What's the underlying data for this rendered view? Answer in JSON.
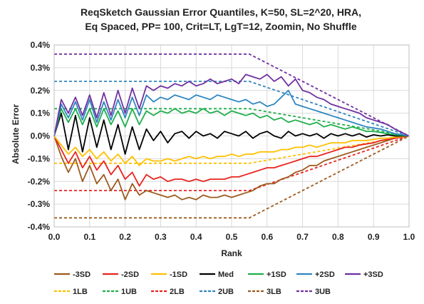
{
  "chart_data": {
    "type": "line",
    "title": [
      "ReqSketch Gaussian Error Quantiles, K=50, SL=2^20,  HRA,",
      "Eq Spaced, PP= 100, Crit=LT, LgT=12, Zoomin, No Shuffle"
    ],
    "xlabel": "Rank",
    "ylabel": "Absolute Error",
    "xlim": [
      0,
      1.0
    ],
    "ylim": [
      -0.4,
      0.4
    ],
    "x_ticks": [
      "0.0",
      "0.1",
      "0.2",
      "0.3",
      "0.4",
      "0.5",
      "0.6",
      "0.7",
      "0.8",
      "0.9",
      "1.0"
    ],
    "y_ticks": [
      "0.4%",
      "0.3%",
      "0.2%",
      "0.1%",
      "0.0%",
      "-0.1%",
      "-0.2%",
      "-0.3%",
      "-0.4%"
    ],
    "y_unit": "%",
    "grid": true,
    "legend_position": "bottom",
    "series": [
      {
        "name": "-3SD",
        "color": "#9C5B1E",
        "dash": false,
        "x": [
          0,
          0.02,
          0.04,
          0.06,
          0.08,
          0.1,
          0.12,
          0.14,
          0.16,
          0.18,
          0.2,
          0.22,
          0.24,
          0.26,
          0.28,
          0.3,
          0.32,
          0.34,
          0.36,
          0.38,
          0.4,
          0.42,
          0.44,
          0.46,
          0.48,
          0.5,
          0.52,
          0.54,
          0.56,
          0.58,
          0.6,
          0.62,
          0.64,
          0.66,
          0.68,
          0.7,
          0.72,
          0.74,
          0.76,
          0.78,
          0.8,
          0.82,
          0.84,
          0.86,
          0.88,
          0.9,
          0.92,
          0.94,
          0.96,
          0.98,
          1.0
        ],
        "y": [
          0,
          -0.09,
          -0.16,
          -0.1,
          -0.2,
          -0.13,
          -0.21,
          -0.17,
          -0.24,
          -0.19,
          -0.28,
          -0.21,
          -0.26,
          -0.24,
          -0.25,
          -0.26,
          -0.27,
          -0.26,
          -0.28,
          -0.27,
          -0.28,
          -0.26,
          -0.27,
          -0.27,
          -0.26,
          -0.27,
          -0.26,
          -0.25,
          -0.24,
          -0.22,
          -0.21,
          -0.21,
          -0.19,
          -0.18,
          -0.16,
          -0.15,
          -0.13,
          -0.13,
          -0.11,
          -0.1,
          -0.09,
          -0.08,
          -0.07,
          -0.06,
          -0.05,
          -0.04,
          -0.03,
          -0.02,
          -0.01,
          -0.005,
          0
        ]
      },
      {
        "name": "-2SD",
        "color": "#E8231F",
        "dash": false,
        "x": [
          0,
          0.02,
          0.04,
          0.06,
          0.08,
          0.1,
          0.12,
          0.14,
          0.16,
          0.18,
          0.2,
          0.22,
          0.24,
          0.26,
          0.28,
          0.3,
          0.32,
          0.34,
          0.36,
          0.38,
          0.4,
          0.42,
          0.44,
          0.46,
          0.48,
          0.5,
          0.52,
          0.54,
          0.56,
          0.58,
          0.6,
          0.62,
          0.64,
          0.66,
          0.68,
          0.7,
          0.72,
          0.74,
          0.76,
          0.78,
          0.8,
          0.82,
          0.84,
          0.86,
          0.88,
          0.9,
          0.92,
          0.94,
          0.96,
          0.98,
          1.0
        ],
        "y": [
          0,
          -0.06,
          -0.12,
          -0.07,
          -0.14,
          -0.09,
          -0.15,
          -0.11,
          -0.17,
          -0.13,
          -0.19,
          -0.16,
          -0.22,
          -0.17,
          -0.19,
          -0.18,
          -0.2,
          -0.19,
          -0.19,
          -0.2,
          -0.19,
          -0.2,
          -0.19,
          -0.19,
          -0.19,
          -0.18,
          -0.18,
          -0.17,
          -0.16,
          -0.15,
          -0.14,
          -0.14,
          -0.13,
          -0.12,
          -0.11,
          -0.1,
          -0.09,
          -0.09,
          -0.08,
          -0.07,
          -0.06,
          -0.05,
          -0.05,
          -0.04,
          -0.035,
          -0.03,
          -0.02,
          -0.015,
          -0.01,
          -0.005,
          0
        ]
      },
      {
        "name": "-1SD",
        "color": "#FFC000",
        "dash": false,
        "x": [
          0,
          0.02,
          0.04,
          0.06,
          0.08,
          0.1,
          0.12,
          0.14,
          0.16,
          0.18,
          0.2,
          0.22,
          0.24,
          0.26,
          0.28,
          0.3,
          0.32,
          0.34,
          0.36,
          0.38,
          0.4,
          0.42,
          0.44,
          0.46,
          0.48,
          0.5,
          0.52,
          0.54,
          0.56,
          0.58,
          0.6,
          0.62,
          0.64,
          0.66,
          0.68,
          0.7,
          0.72,
          0.74,
          0.76,
          0.78,
          0.8,
          0.82,
          0.84,
          0.86,
          0.88,
          0.9,
          0.92,
          0.94,
          0.96,
          0.98,
          1.0
        ],
        "y": [
          0,
          -0.04,
          -0.08,
          -0.05,
          -0.09,
          -0.06,
          -0.1,
          -0.07,
          -0.11,
          -0.08,
          -0.12,
          -0.09,
          -0.13,
          -0.1,
          -0.11,
          -0.11,
          -0.1,
          -0.11,
          -0.1,
          -0.09,
          -0.1,
          -0.09,
          -0.1,
          -0.09,
          -0.09,
          -0.08,
          -0.09,
          -0.08,
          -0.08,
          -0.07,
          -0.07,
          -0.07,
          -0.06,
          -0.06,
          -0.05,
          -0.05,
          -0.04,
          -0.05,
          -0.04,
          -0.03,
          -0.03,
          -0.03,
          -0.02,
          -0.02,
          -0.02,
          -0.015,
          -0.01,
          -0.01,
          -0.005,
          -0.003,
          0
        ]
      },
      {
        "name": "Med",
        "color": "#000000",
        "dash": false,
        "x": [
          0,
          0.02,
          0.04,
          0.06,
          0.08,
          0.1,
          0.12,
          0.14,
          0.16,
          0.18,
          0.2,
          0.22,
          0.24,
          0.26,
          0.28,
          0.3,
          0.32,
          0.34,
          0.36,
          0.38,
          0.4,
          0.42,
          0.44,
          0.46,
          0.48,
          0.5,
          0.52,
          0.54,
          0.56,
          0.58,
          0.6,
          0.62,
          0.64,
          0.66,
          0.68,
          0.7,
          0.72,
          0.74,
          0.76,
          0.78,
          0.8,
          0.82,
          0.84,
          0.86,
          0.88,
          0.9,
          0.92,
          0.94,
          0.96,
          0.98,
          1.0
        ],
        "y": [
          0,
          0.1,
          -0.06,
          0.09,
          -0.07,
          0.08,
          -0.05,
          0.07,
          -0.06,
          0.05,
          -0.08,
          0.04,
          -0.06,
          0.03,
          -0.02,
          0.02,
          -0.03,
          0.01,
          0.02,
          -0.01,
          0.02,
          0.0,
          0.01,
          -0.01,
          0.02,
          0.01,
          0.0,
          0.02,
          -0.01,
          0.01,
          0.02,
          0.0,
          -0.01,
          0.02,
          0.0,
          0.01,
          0.0,
          0.01,
          -0.01,
          0.01,
          0.0,
          0.01,
          0.0,
          0.01,
          -0.005,
          0.005,
          0.0,
          0.005,
          0.0,
          0.0,
          0
        ]
      },
      {
        "name": "+1SD",
        "color": "#1FAF4B",
        "dash": false,
        "x": [
          0,
          0.02,
          0.04,
          0.06,
          0.08,
          0.1,
          0.12,
          0.14,
          0.16,
          0.18,
          0.2,
          0.22,
          0.24,
          0.26,
          0.28,
          0.3,
          0.32,
          0.34,
          0.36,
          0.38,
          0.4,
          0.42,
          0.44,
          0.46,
          0.48,
          0.5,
          0.52,
          0.54,
          0.56,
          0.58,
          0.6,
          0.62,
          0.64,
          0.66,
          0.68,
          0.7,
          0.72,
          0.74,
          0.76,
          0.78,
          0.8,
          0.82,
          0.84,
          0.86,
          0.88,
          0.9,
          0.92,
          0.94,
          0.96,
          0.98,
          1.0
        ],
        "y": [
          0,
          0.12,
          0.06,
          0.12,
          0.05,
          0.12,
          0.04,
          0.12,
          0.05,
          0.11,
          0.04,
          0.12,
          0.05,
          0.11,
          0.09,
          0.11,
          0.1,
          0.12,
          0.1,
          0.11,
          0.1,
          0.12,
          0.1,
          0.11,
          0.09,
          0.11,
          0.1,
          0.09,
          0.1,
          0.08,
          0.09,
          0.07,
          0.08,
          0.06,
          0.07,
          0.06,
          0.05,
          0.06,
          0.04,
          0.05,
          0.04,
          0.03,
          0.04,
          0.03,
          0.02,
          0.02,
          0.015,
          0.01,
          0.005,
          0.003,
          0
        ]
      },
      {
        "name": "+2SD",
        "color": "#2E86C1",
        "dash": false,
        "x": [
          0,
          0.02,
          0.04,
          0.06,
          0.08,
          0.1,
          0.12,
          0.14,
          0.16,
          0.18,
          0.2,
          0.22,
          0.24,
          0.26,
          0.28,
          0.3,
          0.32,
          0.34,
          0.36,
          0.38,
          0.4,
          0.42,
          0.44,
          0.46,
          0.48,
          0.5,
          0.52,
          0.54,
          0.56,
          0.58,
          0.6,
          0.62,
          0.64,
          0.66,
          0.68,
          0.7,
          0.72,
          0.74,
          0.76,
          0.78,
          0.8,
          0.82,
          0.84,
          0.86,
          0.88,
          0.9,
          0.92,
          0.94,
          0.96,
          0.98,
          1.0
        ],
        "y": [
          0,
          0.14,
          0.08,
          0.15,
          0.07,
          0.16,
          0.06,
          0.15,
          0.07,
          0.16,
          0.08,
          0.17,
          0.09,
          0.18,
          0.15,
          0.17,
          0.16,
          0.18,
          0.17,
          0.16,
          0.18,
          0.17,
          0.16,
          0.18,
          0.17,
          0.16,
          0.15,
          0.16,
          0.14,
          0.15,
          0.13,
          0.14,
          0.17,
          0.2,
          0.14,
          0.13,
          0.12,
          0.11,
          0.1,
          0.09,
          0.08,
          0.07,
          0.06,
          0.05,
          0.04,
          0.035,
          0.03,
          0.02,
          0.01,
          0.005,
          0
        ]
      },
      {
        "name": "+3SD",
        "color": "#7030A0",
        "dash": false,
        "x": [
          0,
          0.02,
          0.04,
          0.06,
          0.08,
          0.1,
          0.12,
          0.14,
          0.16,
          0.18,
          0.2,
          0.22,
          0.24,
          0.26,
          0.28,
          0.3,
          0.32,
          0.34,
          0.36,
          0.38,
          0.4,
          0.42,
          0.44,
          0.46,
          0.48,
          0.5,
          0.52,
          0.54,
          0.56,
          0.58,
          0.6,
          0.62,
          0.64,
          0.66,
          0.68,
          0.7,
          0.72,
          0.74,
          0.76,
          0.78,
          0.8,
          0.82,
          0.84,
          0.86,
          0.88,
          0.9,
          0.92,
          0.94,
          0.96,
          0.98,
          1.0
        ],
        "y": [
          0,
          0.16,
          0.1,
          0.17,
          0.09,
          0.18,
          0.08,
          0.19,
          0.09,
          0.2,
          0.1,
          0.21,
          0.12,
          0.22,
          0.2,
          0.22,
          0.21,
          0.23,
          0.22,
          0.24,
          0.22,
          0.23,
          0.25,
          0.23,
          0.24,
          0.25,
          0.23,
          0.27,
          0.26,
          0.25,
          0.27,
          0.24,
          0.26,
          0.22,
          0.25,
          0.2,
          0.19,
          0.17,
          0.16,
          0.14,
          0.13,
          0.12,
          0.11,
          0.1,
          0.08,
          0.07,
          0.06,
          0.05,
          0.03,
          0.015,
          0
        ]
      },
      {
        "name": "1LB",
        "color": "#FFC000",
        "dash": true,
        "x": [
          0,
          0.55,
          1.0
        ],
        "y": [
          -0.12,
          -0.12,
          0
        ]
      },
      {
        "name": "1UB",
        "color": "#1FAF4B",
        "dash": true,
        "x": [
          0,
          0.55,
          1.0
        ],
        "y": [
          0.12,
          0.12,
          0
        ]
      },
      {
        "name": "2LB",
        "color": "#E8231F",
        "dash": true,
        "x": [
          0,
          0.55,
          1.0
        ],
        "y": [
          -0.24,
          -0.24,
          0
        ]
      },
      {
        "name": "2UB",
        "color": "#2E86C1",
        "dash": true,
        "x": [
          0,
          0.55,
          1.0
        ],
        "y": [
          0.24,
          0.24,
          0
        ]
      },
      {
        "name": "3LB",
        "color": "#9C5B1E",
        "dash": true,
        "x": [
          0,
          0.55,
          1.0
        ],
        "y": [
          -0.36,
          -0.36,
          0
        ]
      },
      {
        "name": "3UB",
        "color": "#7030A0",
        "dash": true,
        "x": [
          0,
          0.55,
          1.0
        ],
        "y": [
          0.36,
          0.36,
          0
        ]
      }
    ]
  }
}
